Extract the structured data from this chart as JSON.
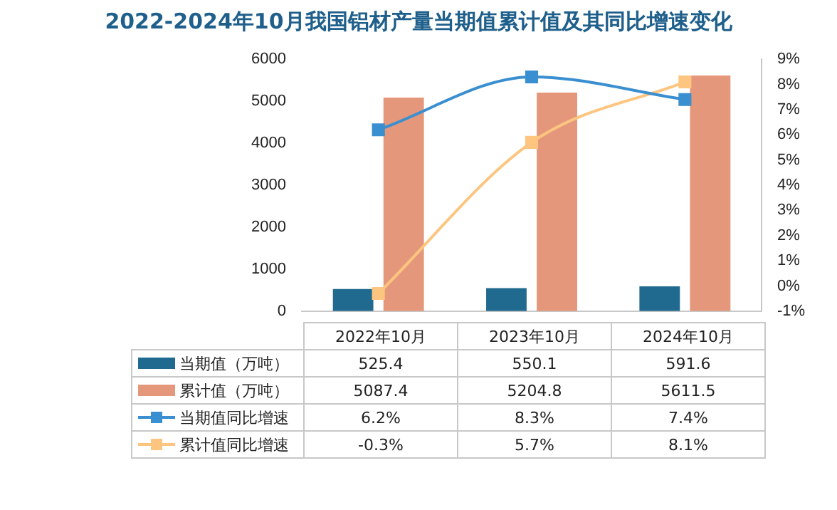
{
  "chart_data": {
    "type": "bar",
    "title": "2022-2024年10月我国铝材产量当期值累计值及其同比增速变化",
    "categories": [
      "2022年10月",
      "2023年10月",
      "2024年10月"
    ],
    "series": [
      {
        "name": "当期值（万吨）",
        "color": "#1f6a8e",
        "values": [
          525.4,
          550.1,
          591.6
        ],
        "value_labels": [
          "525.4",
          "550.1",
          "591.6"
        ]
      },
      {
        "name": "累计值（万吨）",
        "color": "#e4977a",
        "values": [
          5087.4,
          5204.8,
          5611.5
        ],
        "value_labels": [
          "5087.4",
          "5204.8",
          "5611.5"
        ]
      },
      {
        "name": "当期值同比增速",
        "type": "line",
        "axis": "y2",
        "color": "#3a8fd0",
        "values": [
          6.2,
          8.3,
          7.4
        ],
        "value_labels": [
          "6.2%",
          "8.3%",
          "7.4%"
        ]
      },
      {
        "name": "累计值同比增速",
        "type": "line",
        "axis": "y2",
        "color": "#fdc57f",
        "values": [
          -0.3,
          5.7,
          8.1
        ],
        "value_labels": [
          "-0.3%",
          "5.7%",
          "8.1%"
        ]
      }
    ],
    "ylim": [
      0,
      6000
    ],
    "yticks": [
      0,
      1000,
      2000,
      3000,
      4000,
      5000,
      6000
    ],
    "y2lim": [
      -1,
      9
    ],
    "y2ticks": [
      {
        "value": -1,
        "label": "-1%"
      },
      {
        "value": 0,
        "label": "0%"
      },
      {
        "value": 1,
        "label": "1%"
      },
      {
        "value": 2,
        "label": "2%"
      },
      {
        "value": 3,
        "label": "3%"
      },
      {
        "value": 4,
        "label": "4%"
      },
      {
        "value": 5,
        "label": "5%"
      },
      {
        "value": 6,
        "label": "6%"
      },
      {
        "value": 7,
        "label": "7%"
      },
      {
        "value": 8,
        "label": "8%"
      },
      {
        "value": 9,
        "label": "9%"
      }
    ],
    "legend": "bottom",
    "marker": "square",
    "grid": false
  }
}
